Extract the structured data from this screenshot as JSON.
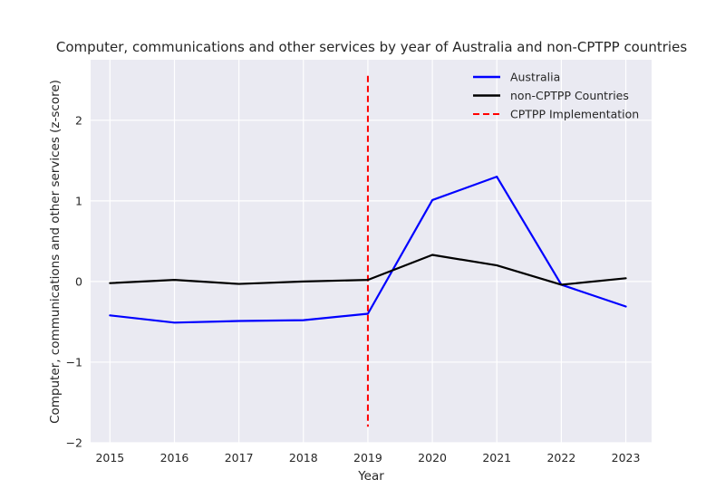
{
  "chart_data": {
    "type": "line",
    "title": "Computer, communications and other services by year of Australia and non-CPTPP countries",
    "xlabel": "Year",
    "ylabel": "Computer, communications and other services (z-score)",
    "x": [
      2015,
      2016,
      2017,
      2018,
      2019,
      2020,
      2021,
      2022,
      2023
    ],
    "xlim": [
      2014.7,
      2023.4
    ],
    "ylim": [
      -2,
      2.75
    ],
    "xticks": [
      "2015",
      "2016",
      "2017",
      "2018",
      "2019",
      "2020",
      "2021",
      "2022",
      "2023"
    ],
    "yticks": [
      "−2",
      "−1",
      "0",
      "1",
      "2"
    ],
    "ytick_values": [
      -2,
      -1,
      0,
      1,
      2
    ],
    "grid": true,
    "legend_position": "top-right",
    "series": [
      {
        "name": "Australia",
        "color": "#0000ff",
        "values": [
          -0.42,
          -0.51,
          -0.49,
          -0.48,
          -0.4,
          1.01,
          1.3,
          -0.04,
          -0.31
        ]
      },
      {
        "name": "non-CPTPP Countries",
        "color": "#000000",
        "values": [
          -0.02,
          0.02,
          -0.03,
          0.0,
          0.02,
          0.33,
          0.2,
          -0.04,
          0.04
        ]
      }
    ],
    "vline": {
      "name": "CPTPP Implementation",
      "x": 2019,
      "y_range": [
        -1.8,
        2.55
      ],
      "color": "#ff0000",
      "style": "dashed"
    },
    "legend": [
      "Australia",
      "non-CPTPP Countries",
      "CPTPP Implementation"
    ]
  }
}
